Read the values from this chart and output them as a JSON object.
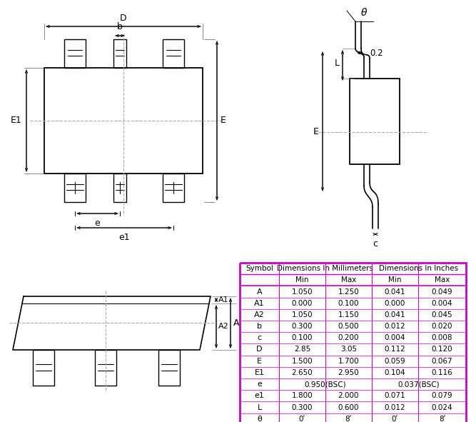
{
  "bg_color": "#ffffff",
  "line_color": "#000000",
  "dash_color": "#aaaaaa",
  "table_border_color": "#cc00cc",
  "table_data": {
    "symbols": [
      "A",
      "A1",
      "A2",
      "b",
      "c",
      "D",
      "E",
      "E1",
      "e",
      "e1",
      "L",
      "θ"
    ],
    "mm_min": [
      "1.050",
      "0.000",
      "1.050",
      "0.300",
      "0.100",
      "2.85",
      "1.500",
      "2.650",
      "0.950(BSC)",
      "1.800",
      "0.300",
      "0ʹ"
    ],
    "mm_max": [
      "1.250",
      "0.100",
      "1.150",
      "0.500",
      "0.200",
      "3.05",
      "1.700",
      "2.950",
      "0.950(BSC)",
      "2.000",
      "0.600",
      "8ʹ"
    ],
    "in_min": [
      "0.041",
      "0.000",
      "0.041",
      "0.012",
      "0.004",
      "0.112",
      "0.059",
      "0.104",
      "0.037(BSC)",
      "0.071",
      "0.012",
      "0ʹ"
    ],
    "in_max": [
      "0.049",
      "0.004",
      "0.045",
      "0.020",
      "0.008",
      "0.120",
      "0.067",
      "0.116",
      "0.037(BSC)",
      "0.079",
      "0.024",
      "8ʹ"
    ]
  }
}
